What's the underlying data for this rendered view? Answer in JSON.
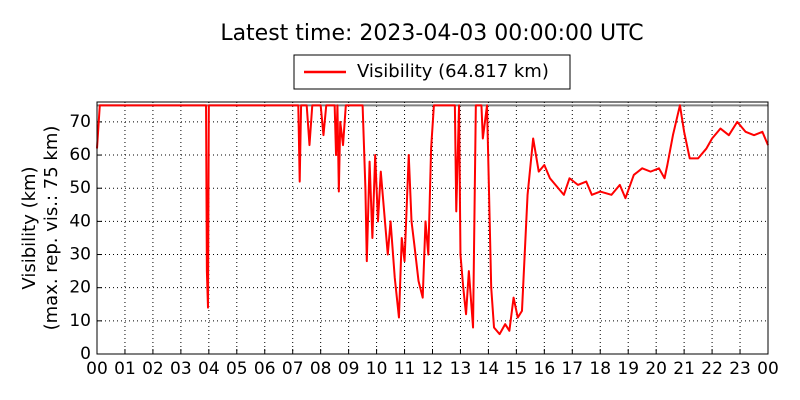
{
  "chart_data": {
    "type": "line",
    "title": "Latest time: 2023-04-03 00:00:00 UTC",
    "y_label": [
      "Visibility (km)",
      "(max. rep. vis.: 75 km)"
    ],
    "xlim": [
      0,
      24
    ],
    "ylim": [
      0,
      76
    ],
    "xticks": [
      {
        "value": 0,
        "label": "00"
      },
      {
        "value": 1,
        "label": "01"
      },
      {
        "value": 2,
        "label": "02"
      },
      {
        "value": 3,
        "label": "03"
      },
      {
        "value": 4,
        "label": "04"
      },
      {
        "value": 5,
        "label": "05"
      },
      {
        "value": 6,
        "label": "06"
      },
      {
        "value": 7,
        "label": "07"
      },
      {
        "value": 8,
        "label": "08"
      },
      {
        "value": 9,
        "label": "09"
      },
      {
        "value": 10,
        "label": "10"
      },
      {
        "value": 11,
        "label": "11"
      },
      {
        "value": 12,
        "label": "12"
      },
      {
        "value": 13,
        "label": "13"
      },
      {
        "value": 14,
        "label": "14"
      },
      {
        "value": 15,
        "label": "15"
      },
      {
        "value": 16,
        "label": "16"
      },
      {
        "value": 17,
        "label": "17"
      },
      {
        "value": 18,
        "label": "18"
      },
      {
        "value": 19,
        "label": "19"
      },
      {
        "value": 20,
        "label": "20"
      },
      {
        "value": 21,
        "label": "21"
      },
      {
        "value": 22,
        "label": "22"
      },
      {
        "value": 23,
        "label": "23"
      },
      {
        "value": 24,
        "label": "00"
      }
    ],
    "yticks": [
      0,
      10,
      20,
      30,
      40,
      50,
      60,
      70
    ],
    "grid": true,
    "max_line": 75,
    "max_line_color": "#808080",
    "series": [
      {
        "name": "Visibility (64.817 km)",
        "color": "#ff0000",
        "x": [
          0,
          0.1,
          3.9,
          3.93,
          3.97,
          4.0,
          7.2,
          7.25,
          7.3,
          7.5,
          7.6,
          7.7,
          8.0,
          8.1,
          8.2,
          8.5,
          8.55,
          8.6,
          8.65,
          8.7,
          8.8,
          8.9,
          9.5,
          9.6,
          9.65,
          9.75,
          9.85,
          9.95,
          10.05,
          10.15,
          10.25,
          10.4,
          10.5,
          10.65,
          10.8,
          10.9,
          11.0,
          11.15,
          11.25,
          11.35,
          11.5,
          11.65,
          11.75,
          11.85,
          11.95,
          12.05,
          12.8,
          12.85,
          12.95,
          13.0,
          13.1,
          13.2,
          13.3,
          13.45,
          13.55,
          13.75,
          13.8,
          13.95,
          14.1,
          14.2,
          14.4,
          14.6,
          14.75,
          14.9,
          15.05,
          15.2,
          15.4,
          15.6,
          15.8,
          16.0,
          16.2,
          16.5,
          16.7,
          16.9,
          17.2,
          17.5,
          17.7,
          18.0,
          18.4,
          18.7,
          18.9,
          19.2,
          19.5,
          19.8,
          20.1,
          20.3,
          20.4,
          20.6,
          20.85,
          21.0,
          21.2,
          21.5,
          21.8,
          22.0,
          22.3,
          22.6,
          22.9,
          23.2,
          23.5,
          23.8,
          24.0
        ],
        "values": [
          62,
          75,
          75,
          25,
          14,
          75,
          75,
          52,
          75,
          75,
          63,
          75,
          75,
          66,
          75,
          75,
          60,
          75,
          49,
          70,
          63,
          75,
          75,
          50,
          28,
          58,
          35,
          60,
          40,
          55,
          45,
          30,
          40,
          23,
          11,
          35,
          28,
          60,
          40,
          33,
          22,
          17,
          40,
          30,
          62,
          75,
          75,
          43,
          75,
          30,
          20,
          12,
          25,
          8,
          75,
          75,
          65,
          75,
          20,
          8,
          6,
          9,
          7,
          17,
          11,
          13,
          48,
          65,
          55,
          57,
          53,
          50,
          48,
          53,
          51,
          52,
          48,
          49,
          48,
          51,
          47,
          54,
          56,
          55,
          56,
          53,
          57,
          66,
          75,
          67,
          59,
          59,
          62,
          65,
          68,
          66,
          70,
          67,
          66,
          67,
          63
        ]
      }
    ]
  }
}
